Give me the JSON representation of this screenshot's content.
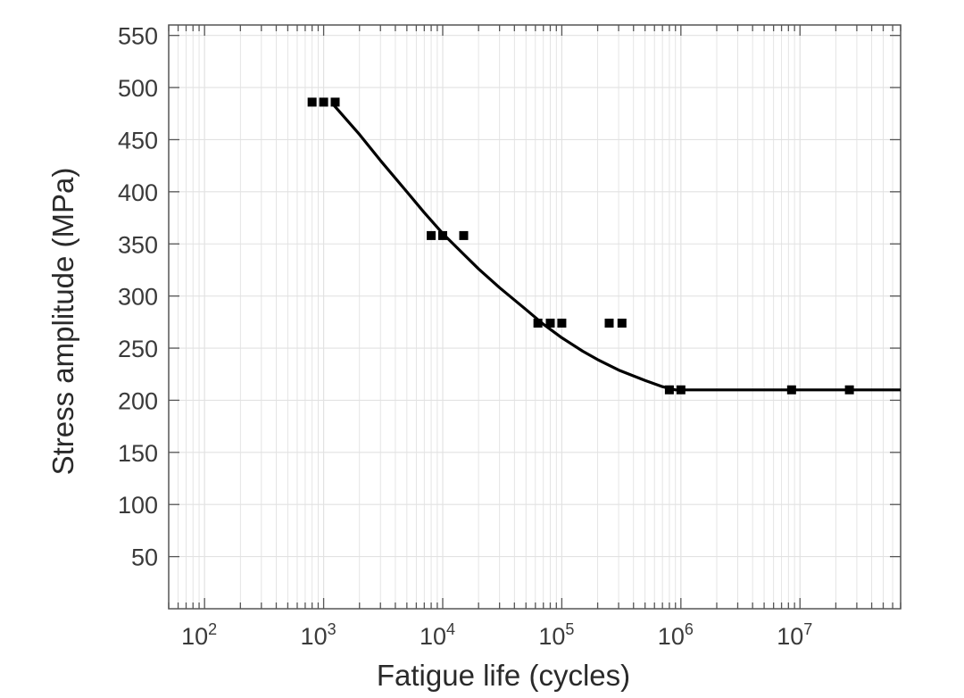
{
  "chart_data": {
    "type": "scatter",
    "title": "",
    "xlabel": "Fatigue life (cycles)",
    "ylabel": "Stress amplitude (MPa)",
    "x_scale": "log",
    "xlim": [
      50,
      70000000
    ],
    "ylim": [
      0,
      560
    ],
    "x_ticks": [
      {
        "value": 100,
        "base": "10",
        "exp": "2"
      },
      {
        "value": 1000,
        "base": "10",
        "exp": "3"
      },
      {
        "value": 10000,
        "base": "10",
        "exp": "4"
      },
      {
        "value": 100000,
        "base": "10",
        "exp": "5"
      },
      {
        "value": 1000000,
        "base": "10",
        "exp": "6"
      },
      {
        "value": 10000000,
        "base": "10",
        "exp": "7"
      }
    ],
    "y_ticks": [
      "50",
      "100",
      "150",
      "200",
      "250",
      "300",
      "350",
      "400",
      "450",
      "500",
      "550"
    ],
    "grid": true,
    "colors": {
      "data": "#000000",
      "grid": "#e2e2e2",
      "axis": "#555555"
    },
    "series": [
      {
        "type": "scatter",
        "marker": "square",
        "points": [
          [
            800,
            486
          ],
          [
            1000,
            486
          ],
          [
            1250,
            486
          ],
          [
            8000,
            358
          ],
          [
            10000,
            358
          ],
          [
            15000,
            358
          ],
          [
            63000,
            274
          ],
          [
            80000,
            274
          ],
          [
            100000,
            274
          ],
          [
            250000,
            274
          ],
          [
            320000,
            274
          ],
          [
            800000,
            210
          ],
          [
            1000000,
            210
          ],
          [
            8500000,
            210
          ],
          [
            26000000,
            210
          ]
        ]
      },
      {
        "type": "line",
        "points": [
          [
            1200,
            484
          ],
          [
            2000,
            455
          ],
          [
            3000,
            430
          ],
          [
            5000,
            400
          ],
          [
            7000,
            380
          ],
          [
            10000,
            360
          ],
          [
            15000,
            340
          ],
          [
            20000,
            326
          ],
          [
            30000,
            308
          ],
          [
            50000,
            287
          ],
          [
            70000,
            273
          ],
          [
            100000,
            260
          ],
          [
            150000,
            247
          ],
          [
            200000,
            239
          ],
          [
            300000,
            229
          ],
          [
            500000,
            219
          ],
          [
            700000,
            213
          ],
          [
            900000,
            210
          ],
          [
            2000000,
            210
          ],
          [
            10000000,
            210
          ],
          [
            70000000,
            210
          ]
        ]
      }
    ]
  }
}
